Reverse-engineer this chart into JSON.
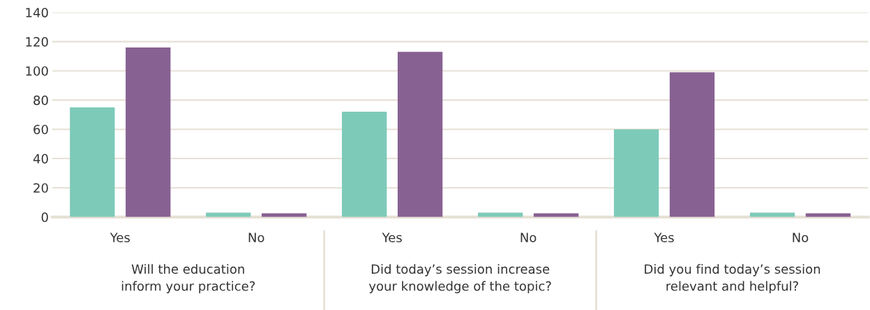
{
  "chart_data": {
    "type": "bar",
    "categories": [
      "Yes",
      "No",
      "Yes",
      "No",
      "Yes",
      "No"
    ],
    "series": [
      {
        "color": "#7ecab9",
        "values": [
          75,
          3,
          72,
          3,
          60,
          3
        ]
      },
      {
        "color": "#876192",
        "values": [
          116,
          2.5,
          113,
          2.5,
          99,
          2.5
        ]
      }
    ],
    "ylim": [
      0,
      140
    ],
    "yticks": [
      0,
      20,
      40,
      60,
      80,
      100,
      120,
      140
    ],
    "grid": "y",
    "legend": false,
    "annotations": [
      "Will the education\ninform your practice?",
      "Did today’s session increase\nyour knowledge of the topic?",
      "Did you find today’s session\nrelevant and helpful?"
    ]
  }
}
